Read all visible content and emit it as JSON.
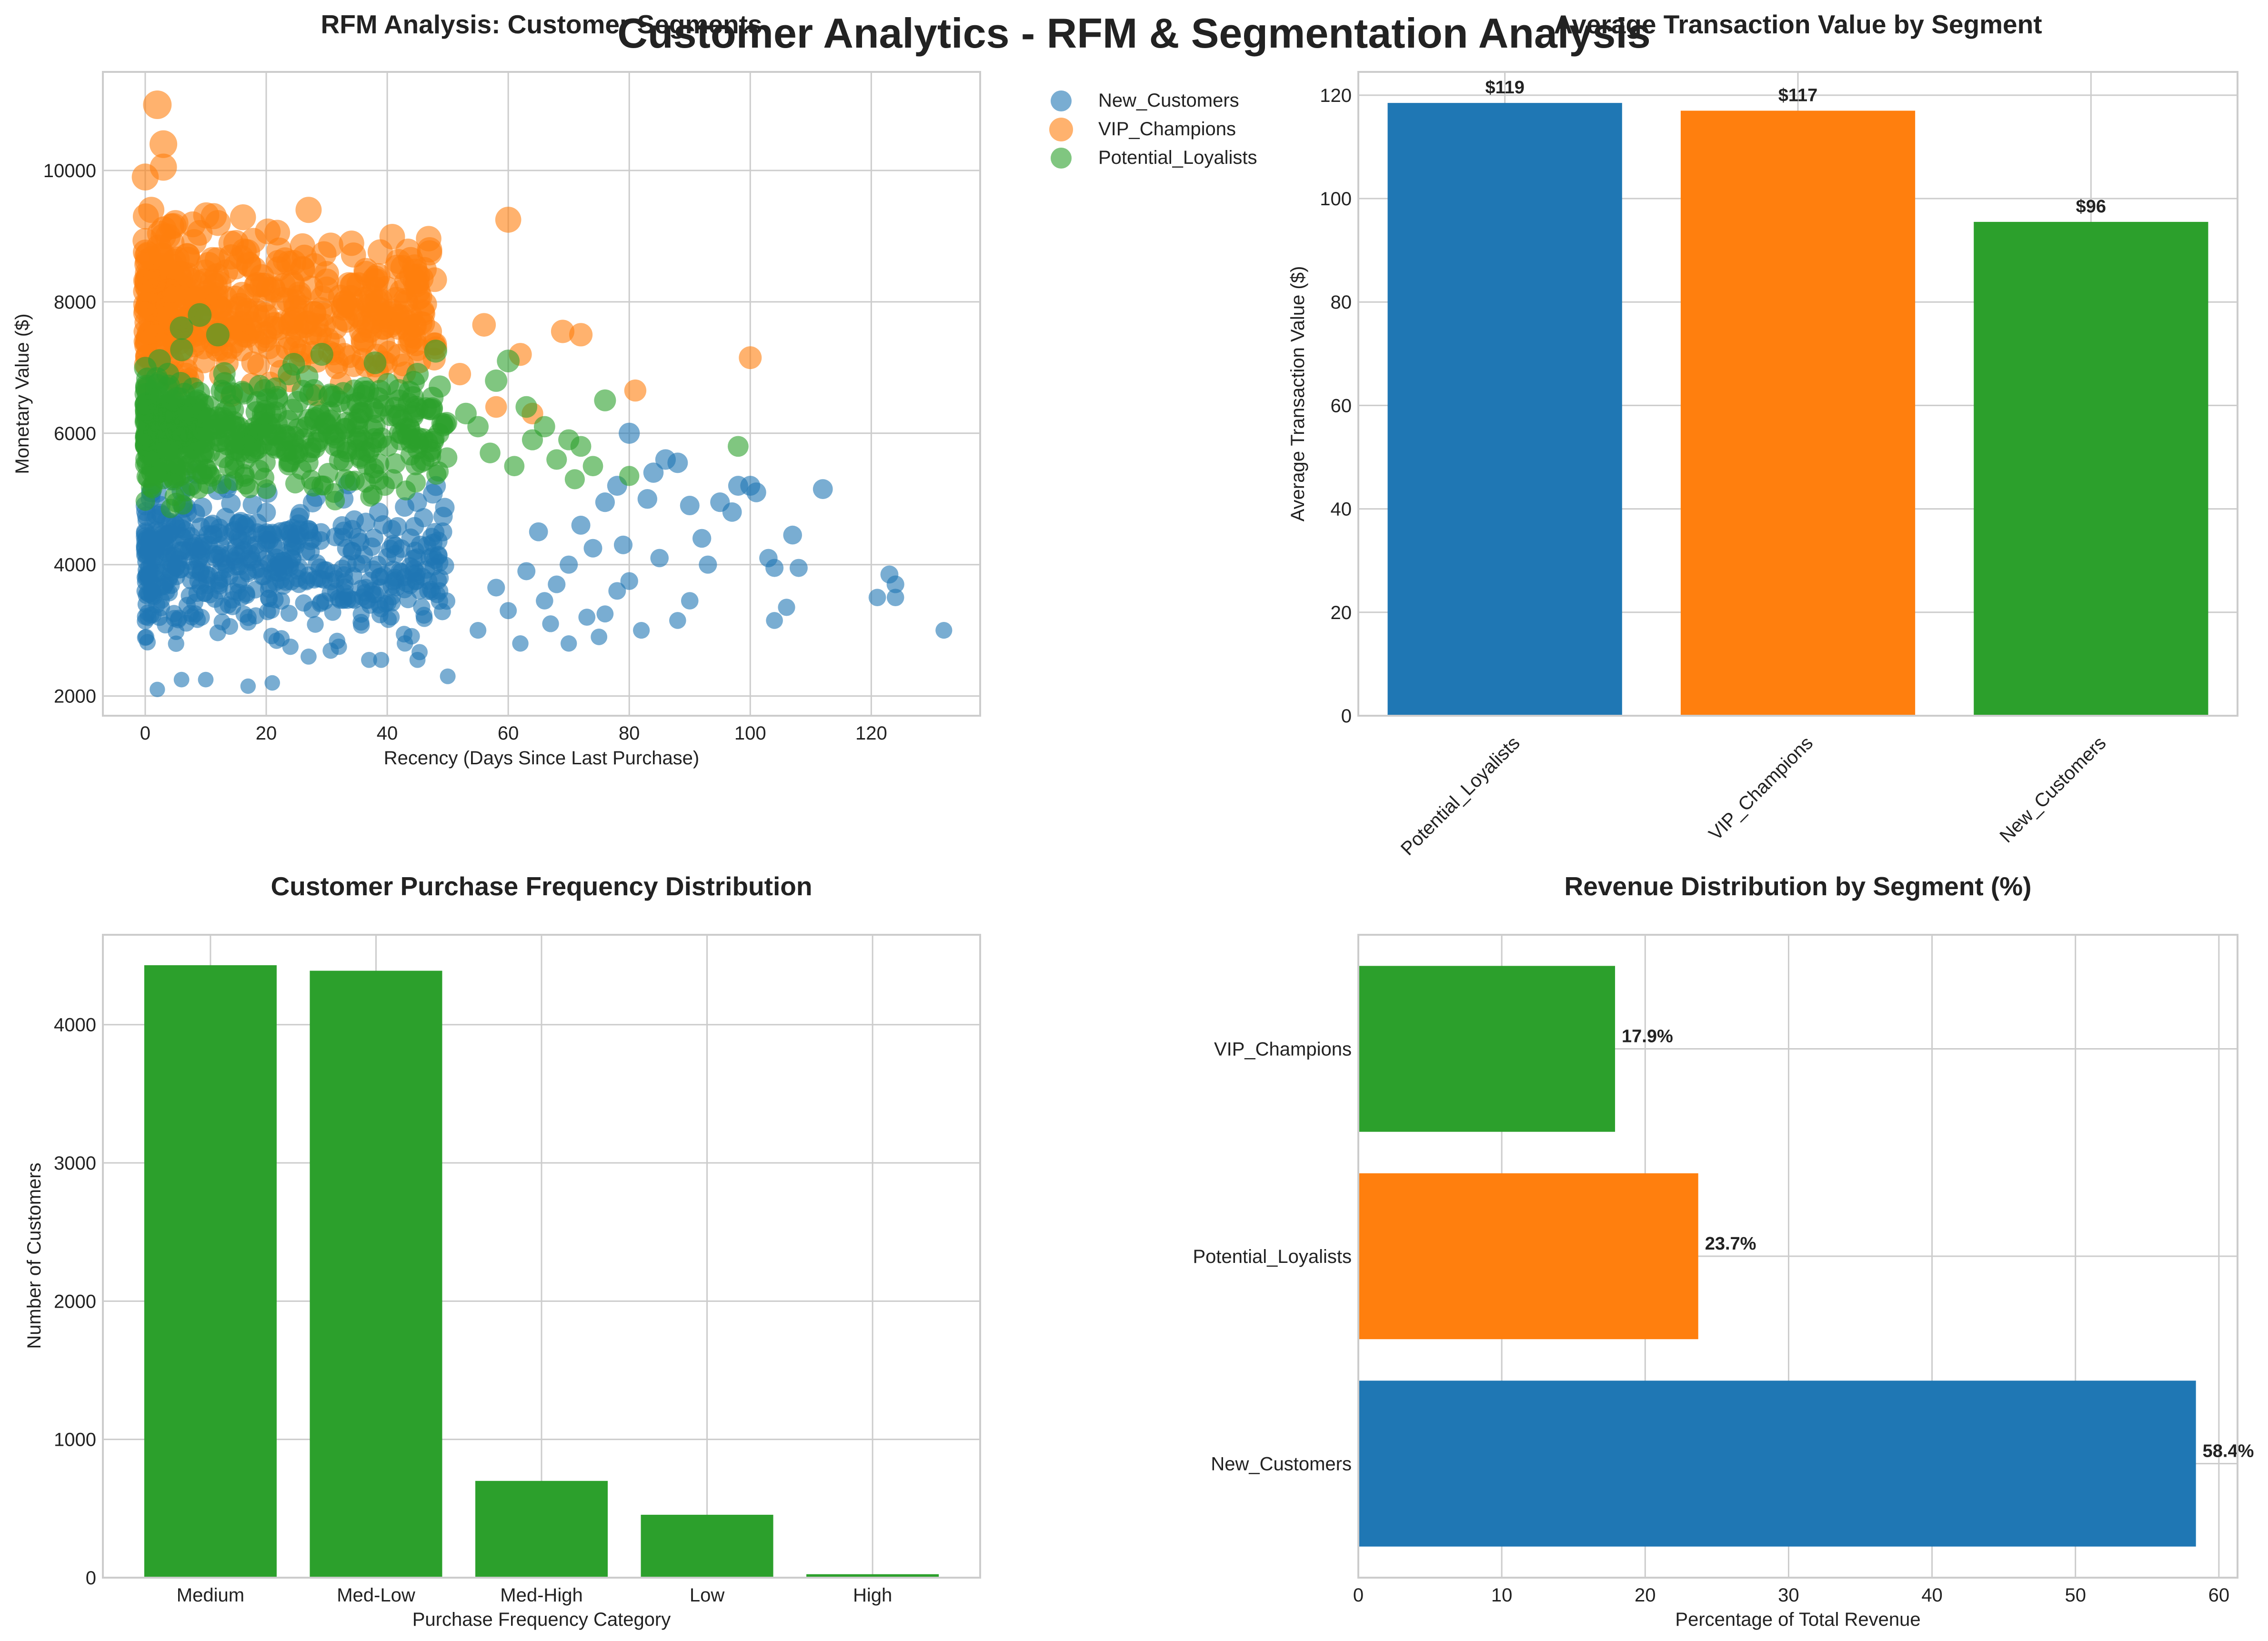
{
  "suptitle": "Customer Analytics - RFM & Segmentation Analysis",
  "colors": {
    "blue": "#1f77b4",
    "orange": "#ff7f0e",
    "green": "#2ca02c"
  },
  "chart_data": [
    {
      "type": "scatter",
      "title": "RFM Analysis: Customer Segments",
      "xlabel": "Recency (Days Since Last Purchase)",
      "ylabel": "Monetary Value ($)",
      "xlim": [
        -7,
        138
      ],
      "ylim": [
        1700,
        11500
      ],
      "xticks": [
        0,
        20,
        40,
        60,
        80,
        100,
        120
      ],
      "yticks": [
        2000,
        4000,
        6000,
        8000,
        10000
      ],
      "grid": true,
      "legend_placement": "outside upper-right",
      "series": [
        {
          "name": "New_Customers",
          "color": "#1f77b4",
          "cloud": {
            "x": [
              0,
              50
            ],
            "y": [
              2800,
              5200
            ]
          },
          "points": [
            [
              2,
              2100
            ],
            [
              6,
              2250
            ],
            [
              10,
              2250
            ],
            [
              17,
              2150
            ],
            [
              21,
              2200
            ],
            [
              24,
              2750
            ],
            [
              27,
              2600
            ],
            [
              32,
              2750
            ],
            [
              37,
              2550
            ],
            [
              39,
              2550
            ],
            [
              45,
              2550
            ],
            [
              50,
              2300
            ],
            [
              55,
              3000
            ],
            [
              62,
              2800
            ],
            [
              67,
              3100
            ],
            [
              70,
              2800
            ],
            [
              73,
              3200
            ],
            [
              75,
              2900
            ],
            [
              76,
              3250
            ],
            [
              78,
              3600
            ],
            [
              80,
              3750
            ],
            [
              82,
              3000
            ],
            [
              85,
              4100
            ],
            [
              88,
              3150
            ],
            [
              90,
              3450
            ],
            [
              92,
              4400
            ],
            [
              93,
              4000
            ],
            [
              95,
              4950
            ],
            [
              97,
              4800
            ],
            [
              98,
              5200
            ],
            [
              100,
              5200
            ],
            [
              101,
              5100
            ],
            [
              103,
              4100
            ],
            [
              104,
              3950
            ],
            [
              104,
              3150
            ],
            [
              106,
              3350
            ],
            [
              107,
              4450
            ],
            [
              108,
              3950
            ],
            [
              112,
              5150
            ],
            [
              121,
              3500
            ],
            [
              123,
              3850
            ],
            [
              124,
              3700
            ],
            [
              124,
              3500
            ],
            [
              132,
              3000
            ],
            [
              80,
              6000
            ],
            [
              84,
              5400
            ],
            [
              86,
              5600
            ],
            [
              88,
              5550
            ],
            [
              90,
              4900
            ],
            [
              78,
              5200
            ],
            [
              76,
              4950
            ],
            [
              72,
              4600
            ],
            [
              70,
              4000
            ],
            [
              65,
              4500
            ],
            [
              83,
              5000
            ],
            [
              79,
              4300
            ],
            [
              74,
              4250
            ],
            [
              68,
              3700
            ],
            [
              63,
              3900
            ],
            [
              58,
              3650
            ],
            [
              60,
              3300
            ],
            [
              66,
              3450
            ]
          ]
        },
        {
          "name": "VIP_Champions",
          "color": "#ff7f0e",
          "cloud": {
            "x": [
              0,
              48
            ],
            "y": [
              6600,
              9200
            ]
          },
          "points": [
            [
              2,
              11000
            ],
            [
              3,
              10400
            ],
            [
              3,
              10050
            ],
            [
              0,
              9900
            ],
            [
              1,
              9400
            ],
            [
              5,
              9200
            ],
            [
              12,
              9200
            ],
            [
              27,
              9400
            ],
            [
              60,
              9250
            ],
            [
              44,
              8400
            ],
            [
              45,
              8300
            ],
            [
              48,
              7300
            ],
            [
              56,
              7650
            ],
            [
              69,
              7550
            ],
            [
              72,
              7500
            ],
            [
              100,
              7150
            ],
            [
              81,
              6650
            ],
            [
              62,
              7200
            ],
            [
              58,
              6400
            ],
            [
              64,
              6300
            ],
            [
              52,
              6900
            ],
            [
              38,
              8200
            ],
            [
              33,
              8000
            ],
            [
              35,
              7800
            ],
            [
              30,
              8200
            ],
            [
              26,
              8850
            ],
            [
              22,
              8600
            ],
            [
              18,
              8500
            ],
            [
              15,
              8900
            ],
            [
              9,
              9050
            ],
            [
              7,
              8700
            ]
          ]
        },
        {
          "name": "Potential_Loyalists",
          "color": "#2ca02c",
          "cloud": {
            "x": [
              0,
              50
            ],
            "y": [
              5000,
              7000
            ]
          },
          "points": [
            [
              48,
              7250
            ],
            [
              60,
              7100
            ],
            [
              58,
              6800
            ],
            [
              63,
              6400
            ],
            [
              66,
              6100
            ],
            [
              68,
              5600
            ],
            [
              70,
              5900
            ],
            [
              72,
              5800
            ],
            [
              74,
              5500
            ],
            [
              76,
              6500
            ],
            [
              80,
              5350
            ],
            [
              98,
              5800
            ],
            [
              55,
              6100
            ],
            [
              53,
              6300
            ],
            [
              57,
              5700
            ],
            [
              61,
              5500
            ],
            [
              64,
              5900
            ],
            [
              71,
              5300
            ],
            [
              45,
              6900
            ],
            [
              42,
              6500
            ],
            [
              9,
              7800
            ],
            [
              12,
              7500
            ],
            [
              6,
              7600
            ]
          ]
        }
      ]
    },
    {
      "type": "bar",
      "title": "Average Transaction Value by Segment",
      "categories": [
        "Potential_Loyalists",
        "VIP_Champions",
        "New_Customers"
      ],
      "values": [
        118.5,
        117,
        95.5
      ],
      "data_labels": [
        "$119",
        "$117",
        "$96"
      ],
      "bar_colors": [
        "#1f77b4",
        "#ff7f0e",
        "#2ca02c"
      ],
      "xlabel": "",
      "ylabel": "Average Transaction Value ($)",
      "ylim": [
        0,
        124.5
      ],
      "yticks": [
        0,
        20,
        40,
        60,
        80,
        100,
        120
      ],
      "grid": true
    },
    {
      "type": "bar",
      "title": "Customer Purchase Frequency Distribution",
      "categories": [
        "Medium",
        "Med-Low",
        "Med-High",
        "Low",
        "High"
      ],
      "values": [
        4430,
        4390,
        700,
        455,
        25
      ],
      "bar_colors": [
        "#2ca02c",
        "#2ca02c",
        "#2ca02c",
        "#2ca02c",
        "#2ca02c"
      ],
      "xlabel": "Purchase Frequency Category",
      "ylabel": "Number of Customers",
      "ylim": [
        0,
        4650
      ],
      "yticks": [
        0,
        1000,
        2000,
        3000,
        4000
      ],
      "grid": true
    },
    {
      "type": "bar",
      "orientation": "horizontal",
      "title": "Revenue Distribution by Segment (%)",
      "categories": [
        "New_Customers",
        "Potential_Loyalists",
        "VIP_Champions"
      ],
      "values": [
        58.4,
        23.7,
        17.9
      ],
      "data_labels": [
        "58.4%",
        "23.7%",
        "17.9%"
      ],
      "bar_colors": [
        "#1f77b4",
        "#ff7f0e",
        "#2ca02c"
      ],
      "xlabel": "Percentage of Total Revenue",
      "ylabel": "",
      "xlim": [
        0,
        61.3
      ],
      "xticks": [
        0,
        10,
        20,
        30,
        40,
        50,
        60
      ],
      "grid": true
    }
  ]
}
